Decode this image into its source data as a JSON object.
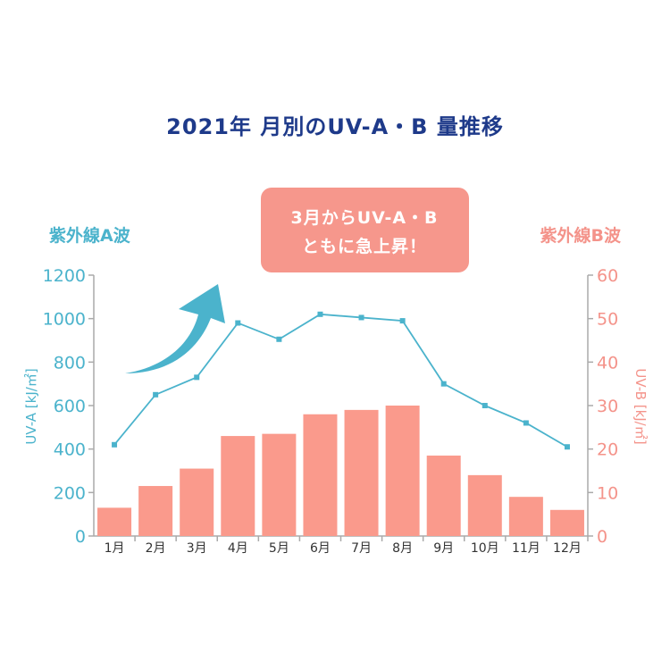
{
  "colors": {
    "title": "#1e3a8a",
    "uva": "#4bb3cc",
    "uvb": "#f4938a",
    "bar": "#fa9a8c",
    "callout_bg": "#f6978c",
    "arrow": "#4bb3cc"
  },
  "callout": {
    "line1": "3月からUV-A・B",
    "line2": "ともに急上昇！"
  },
  "labels": {
    "left_header": "紫外線A波",
    "right_header": "紫外線B波"
  },
  "chart_data": {
    "type": "bar+line",
    "title": "2021年 月別のUV-A・B 量推移",
    "categories": [
      "1月",
      "2月",
      "3月",
      "4月",
      "5月",
      "6月",
      "7月",
      "8月",
      "9月",
      "10月",
      "11月",
      "12月"
    ],
    "series": [
      {
        "name": "UV-A",
        "type": "line",
        "axis": "left",
        "values": [
          420,
          650,
          730,
          980,
          905,
          1020,
          1005,
          990,
          700,
          600,
          520,
          410
        ]
      },
      {
        "name": "UV-B",
        "type": "bar",
        "axis": "right",
        "values": [
          6.5,
          11.5,
          15.5,
          23,
          23.5,
          28,
          29,
          30,
          18.5,
          14,
          9,
          6
        ]
      }
    ],
    "y_left": {
      "label": "UV-A [kJ/㎡]",
      "ylim": [
        0,
        1200
      ],
      "ticks": [
        "0",
        "200",
        "400",
        "600",
        "800",
        "1000",
        "1200"
      ]
    },
    "y_right": {
      "label": "UV-B [kJ/㎡]",
      "ylim": [
        0,
        60
      ],
      "ticks": [
        "0",
        "10",
        "20",
        "30",
        "40",
        "50",
        "60"
      ]
    },
    "grid": false,
    "legend": "none"
  }
}
